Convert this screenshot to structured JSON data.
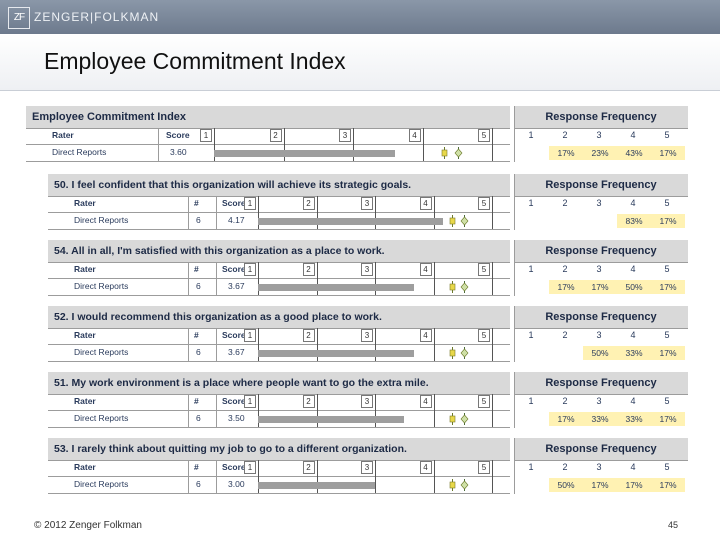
{
  "header": {
    "logo_mark": "ZF",
    "logo_text": "ZENGER|FOLKMAN"
  },
  "slide": {
    "title": "Employee Commitment Index"
  },
  "colors": {
    "highlight": "#fff2b3",
    "bar": "#9e9e9e",
    "header_bg": "#d9d9d9"
  },
  "summary": {
    "heading": "Employee Commitment Index",
    "rf_heading": "Response Frequency",
    "col_rater": "Rater",
    "col_score": "Score",
    "scale": [
      "1",
      "2",
      "3",
      "4",
      "5"
    ],
    "rf_scale": [
      "1",
      "2",
      "3",
      "4",
      "5"
    ],
    "row_label": "Direct Reports",
    "score": "3.60",
    "score_value": 3.6,
    "pcts": [
      "",
      "17%",
      "23%",
      "43%",
      "17%"
    ]
  },
  "items": [
    {
      "question": "50. I feel confident that this organization will achieve its strategic goals.",
      "rf_heading": "Response Frequency",
      "col_rater": "Rater",
      "col_n": "#",
      "col_score": "Score",
      "scale": [
        "1",
        "2",
        "3",
        "4",
        "5"
      ],
      "rf_scale": [
        "1",
        "2",
        "3",
        "4",
        "5"
      ],
      "row_label": "Direct Reports",
      "n": "6",
      "score": "4.17",
      "score_value": 4.17,
      "pcts": [
        "",
        "",
        "",
        "83%",
        "17%"
      ]
    },
    {
      "question": "54. All in all, I'm satisfied with this organization as a place to work.",
      "rf_heading": "Response Frequency",
      "col_rater": "Rater",
      "col_n": "#",
      "col_score": "Score",
      "scale": [
        "1",
        "2",
        "3",
        "4",
        "5"
      ],
      "rf_scale": [
        "1",
        "2",
        "3",
        "4",
        "5"
      ],
      "row_label": "Direct Reports",
      "n": "6",
      "score": "3.67",
      "score_value": 3.67,
      "pcts": [
        "",
        "17%",
        "17%",
        "50%",
        "17%"
      ]
    },
    {
      "question": "52. I would recommend this organization as a good place to work.",
      "rf_heading": "Response Frequency",
      "col_rater": "Rater",
      "col_n": "#",
      "col_score": "Score",
      "scale": [
        "1",
        "2",
        "3",
        "4",
        "5"
      ],
      "rf_scale": [
        "1",
        "2",
        "3",
        "4",
        "5"
      ],
      "row_label": "Direct Reports",
      "n": "6",
      "score": "3.67",
      "score_value": 3.67,
      "pcts": [
        "",
        "",
        "50%",
        "33%",
        "17%"
      ]
    },
    {
      "question": "51. My work environment is a place where people want to go the extra mile.",
      "rf_heading": "Response Frequency",
      "col_rater": "Rater",
      "col_n": "#",
      "col_score": "Score",
      "scale": [
        "1",
        "2",
        "3",
        "4",
        "5"
      ],
      "rf_scale": [
        "1",
        "2",
        "3",
        "4",
        "5"
      ],
      "row_label": "Direct Reports",
      "n": "6",
      "score": "3.50",
      "score_value": 3.5,
      "pcts": [
        "",
        "17%",
        "33%",
        "33%",
        "17%"
      ]
    },
    {
      "question": "53. I rarely think about quitting my job to go to a different organization.",
      "rf_heading": "Response Frequency",
      "col_rater": "Rater",
      "col_n": "#",
      "col_score": "Score",
      "scale": [
        "1",
        "2",
        "3",
        "4",
        "5"
      ],
      "rf_scale": [
        "1",
        "2",
        "3",
        "4",
        "5"
      ],
      "row_label": "Direct Reports",
      "n": "6",
      "score": "3.00",
      "score_value": 3.0,
      "pcts": [
        "",
        "50%",
        "17%",
        "17%",
        "17%"
      ]
    }
  ],
  "footer": {
    "copyright": "© 2012 Zenger Folkman",
    "page": "45"
  }
}
